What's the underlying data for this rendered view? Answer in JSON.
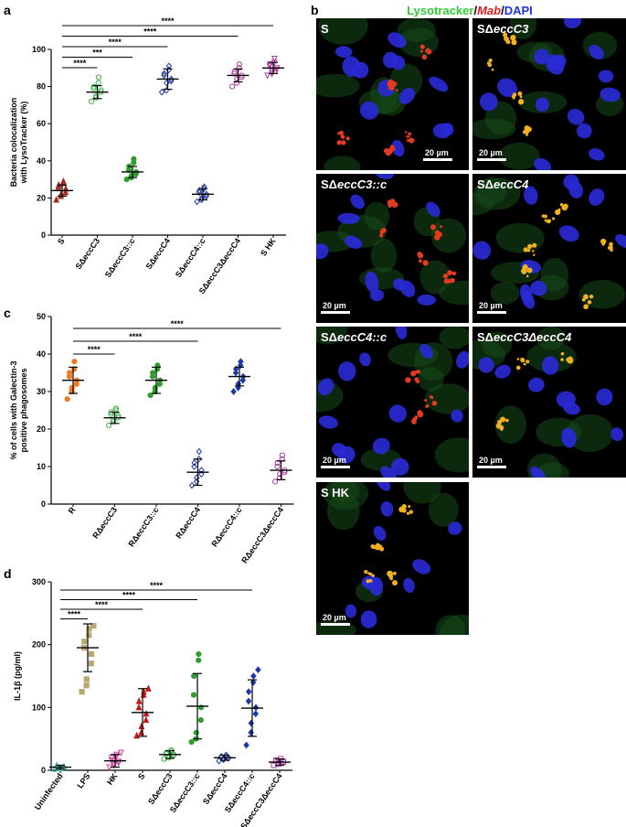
{
  "figure": {
    "panel_labels": {
      "a": "a",
      "b": "b",
      "c": "c",
      "d": "d"
    },
    "microscopy_header": {
      "lysotracker": "Lysotracker",
      "sep1": "/",
      "mab": "Mab",
      "sep2": "/",
      "dapi": "DAPI"
    },
    "microscopy_colors": {
      "lysotracker": "#33cc33",
      "mab": "#e02020",
      "dapi": "#2233dd"
    },
    "micrographs": [
      {
        "label_prefix": "S",
        "label_italic": "",
        "scale_bar": "20 µm",
        "cells": "#2a2ad8",
        "stain": "#e33a20"
      },
      {
        "label_prefix": "SΔ",
        "label_italic": "eccC3",
        "scale_bar": "20 µm",
        "cells": "#2a2ad8",
        "stain": "#f0b020"
      },
      {
        "label_prefix": "SΔ",
        "label_italic": "eccC3::c",
        "scale_bar": "20 µm",
        "cells": "#2a2ad8",
        "stain": "#e33a20"
      },
      {
        "label_prefix": "SΔ",
        "label_italic": "eccC4",
        "scale_bar": "20 µm",
        "cells": "#2a2ad8",
        "stain": "#f0b020"
      },
      {
        "label_prefix": "SΔ",
        "label_italic": "eccC4::c",
        "scale_bar": "20 µm",
        "cells": "#2a2ad8",
        "stain": "#e33a20"
      },
      {
        "label_prefix": "SΔ",
        "label_italic": "eccC3ΔeccC4",
        "scale_bar": "20 µm",
        "cells": "#2a2ad8",
        "stain": "#f0b020"
      },
      {
        "label_prefix": "S HK",
        "label_italic": "",
        "scale_bar": "20 µm",
        "cells": "#2a2ad8",
        "stain": "#f0b020"
      }
    ]
  },
  "chart_data": [
    {
      "panel": "a",
      "type": "scatter",
      "ylabel": "Bacteria colocalization with LysoTracker (%)",
      "ylim": [
        0,
        100
      ],
      "yticks": [
        0,
        20,
        40,
        60,
        80,
        100
      ],
      "categories": [
        "S",
        "SΔeccC3",
        "SΔeccC3::c",
        "SΔeccC4",
        "SΔeccC4::c",
        "SΔeccC3ΔeccC4",
        "S HK"
      ],
      "marker_shapes": [
        "triangle",
        "circle",
        "circle",
        "diamond",
        "diamond",
        "circle",
        "triangle-down"
      ],
      "marker_filled": [
        true,
        false,
        true,
        false,
        false,
        false,
        false
      ],
      "colors": [
        "#a52a2a",
        "#3cb043",
        "#2e9e2e",
        "#1f3aa8",
        "#1f3aa8",
        "#b03aa0",
        "#b03aa0"
      ],
      "means": [
        24,
        77,
        34,
        84,
        22,
        86,
        90
      ],
      "sd": [
        3,
        3.5,
        3,
        5.5,
        3,
        3.5,
        3
      ],
      "values": [
        [
          19,
          21,
          22,
          23,
          25,
          26,
          27,
          28,
          29
        ],
        [
          72,
          74,
          75,
          77,
          78,
          79,
          80,
          82,
          85
        ],
        [
          30,
          31,
          32,
          33,
          34,
          35,
          37,
          39,
          41
        ],
        [
          77,
          78,
          82,
          83,
          84,
          86,
          87,
          89,
          91
        ],
        [
          18,
          19,
          20,
          21,
          22,
          23,
          24,
          25,
          26
        ],
        [
          80,
          82,
          84,
          85,
          86,
          87,
          88,
          90,
          92
        ],
        [
          86,
          87,
          88,
          89,
          90,
          91,
          92,
          93,
          95
        ]
      ],
      "significance": [
        {
          "from": 0,
          "to": 1,
          "label": "****"
        },
        {
          "from": 0,
          "to": 2,
          "label": "***"
        },
        {
          "from": 0,
          "to": 3,
          "label": "****"
        },
        {
          "from": 0,
          "to": 5,
          "label": "****"
        },
        {
          "from": 0,
          "to": 6,
          "label": "****"
        }
      ]
    },
    {
      "panel": "c",
      "type": "scatter",
      "ylabel": "% of cells with Galectin-3 positive phagosomes",
      "ylim": [
        0,
        50
      ],
      "yticks": [
        0,
        10,
        20,
        30,
        40,
        50
      ],
      "categories": [
        "R",
        "RΔeccC3",
        "RΔeccC3::c",
        "RΔeccC4",
        "RΔeccC4::c",
        "RΔeccC3ΔeccC4"
      ],
      "marker_shapes": [
        "circle",
        "circle",
        "circle",
        "diamond",
        "diamond",
        "circle"
      ],
      "marker_filled": [
        true,
        false,
        true,
        false,
        true,
        false
      ],
      "colors": [
        "#f07820",
        "#3cb043",
        "#2e9e2e",
        "#1f3aa8",
        "#1f3aa8",
        "#b03aa0"
      ],
      "means": [
        33,
        23,
        33,
        8.5,
        34,
        9
      ],
      "sd": [
        3.5,
        1.5,
        3.5,
        3.5,
        2.5,
        2.5
      ],
      "values": [
        [
          28,
          30,
          31,
          32,
          33,
          34,
          35,
          36,
          38
        ],
        [
          21,
          22,
          22.5,
          23,
          23.5,
          24,
          24.5,
          25,
          25.5
        ],
        [
          29,
          30,
          31,
          32,
          33,
          34,
          35,
          36,
          37
        ],
        [
          5,
          6,
          7,
          8,
          9,
          10,
          11,
          12,
          14
        ],
        [
          30,
          31,
          32,
          33,
          34,
          35,
          36,
          37,
          38
        ],
        [
          6,
          7,
          8,
          8.5,
          9,
          10,
          11,
          12,
          13
        ]
      ],
      "significance": [
        {
          "from": 0,
          "to": 1,
          "label": "****"
        },
        {
          "from": 0,
          "to": 3,
          "label": "****"
        },
        {
          "from": 0,
          "to": 5,
          "label": "****"
        }
      ]
    },
    {
      "panel": "d",
      "type": "scatter",
      "ylabel": "IL-1β (pg/ml)",
      "ylim": [
        0,
        300
      ],
      "yticks": [
        0,
        100,
        200,
        300
      ],
      "categories": [
        "Uninfected",
        "LPS",
        "HK",
        "S",
        "SΔeccC3",
        "SΔeccC3::c",
        "SΔeccC4",
        "SΔeccC4::c",
        "SΔeccC3ΔeccC4"
      ],
      "marker_shapes": [
        "triangle",
        "square",
        "triangle-down",
        "triangle",
        "circle",
        "circle",
        "diamond",
        "diamond",
        "square"
      ],
      "marker_filled": [
        false,
        true,
        false,
        true,
        false,
        true,
        false,
        true,
        false
      ],
      "colors": [
        "#40c0b0",
        "#b8a870",
        "#d040a0",
        "#c01818",
        "#3cb043",
        "#2e9e2e",
        "#1f3aa8",
        "#1f3aa8",
        "#b03aa0"
      ],
      "means": [
        5,
        195,
        15,
        92,
        25,
        102,
        20,
        99,
        13
      ],
      "sd": [
        3,
        38,
        10,
        38,
        6,
        52,
        4,
        45,
        5
      ],
      "values": [
        [
          2,
          3,
          4,
          5,
          6,
          7,
          8,
          4
        ],
        [
          125,
          135,
          145,
          170,
          185,
          195,
          205,
          215,
          225,
          230
        ],
        [
          5,
          8,
          10,
          12,
          14,
          16,
          20,
          22,
          25,
          28
        ],
        [
          55,
          60,
          70,
          80,
          90,
          100,
          110,
          120,
          125,
          130
        ],
        [
          18,
          20,
          22,
          24,
          25,
          26,
          28,
          30,
          32
        ],
        [
          45,
          50,
          60,
          80,
          100,
          120,
          150,
          175,
          185
        ],
        [
          15,
          17,
          18,
          19,
          20,
          21,
          22,
          23,
          24
        ],
        [
          40,
          60,
          75,
          90,
          100,
          110,
          125,
          140,
          150,
          160
        ],
        [
          8,
          10,
          12,
          13,
          14,
          15,
          16,
          18
        ]
      ],
      "significance": [
        {
          "from": 0,
          "to": 1,
          "label": "****"
        },
        {
          "from": 0,
          "to": 3,
          "label": "****"
        },
        {
          "from": 0,
          "to": 5,
          "label": "****"
        },
        {
          "from": 0,
          "to": 7,
          "label": "****"
        }
      ]
    }
  ]
}
